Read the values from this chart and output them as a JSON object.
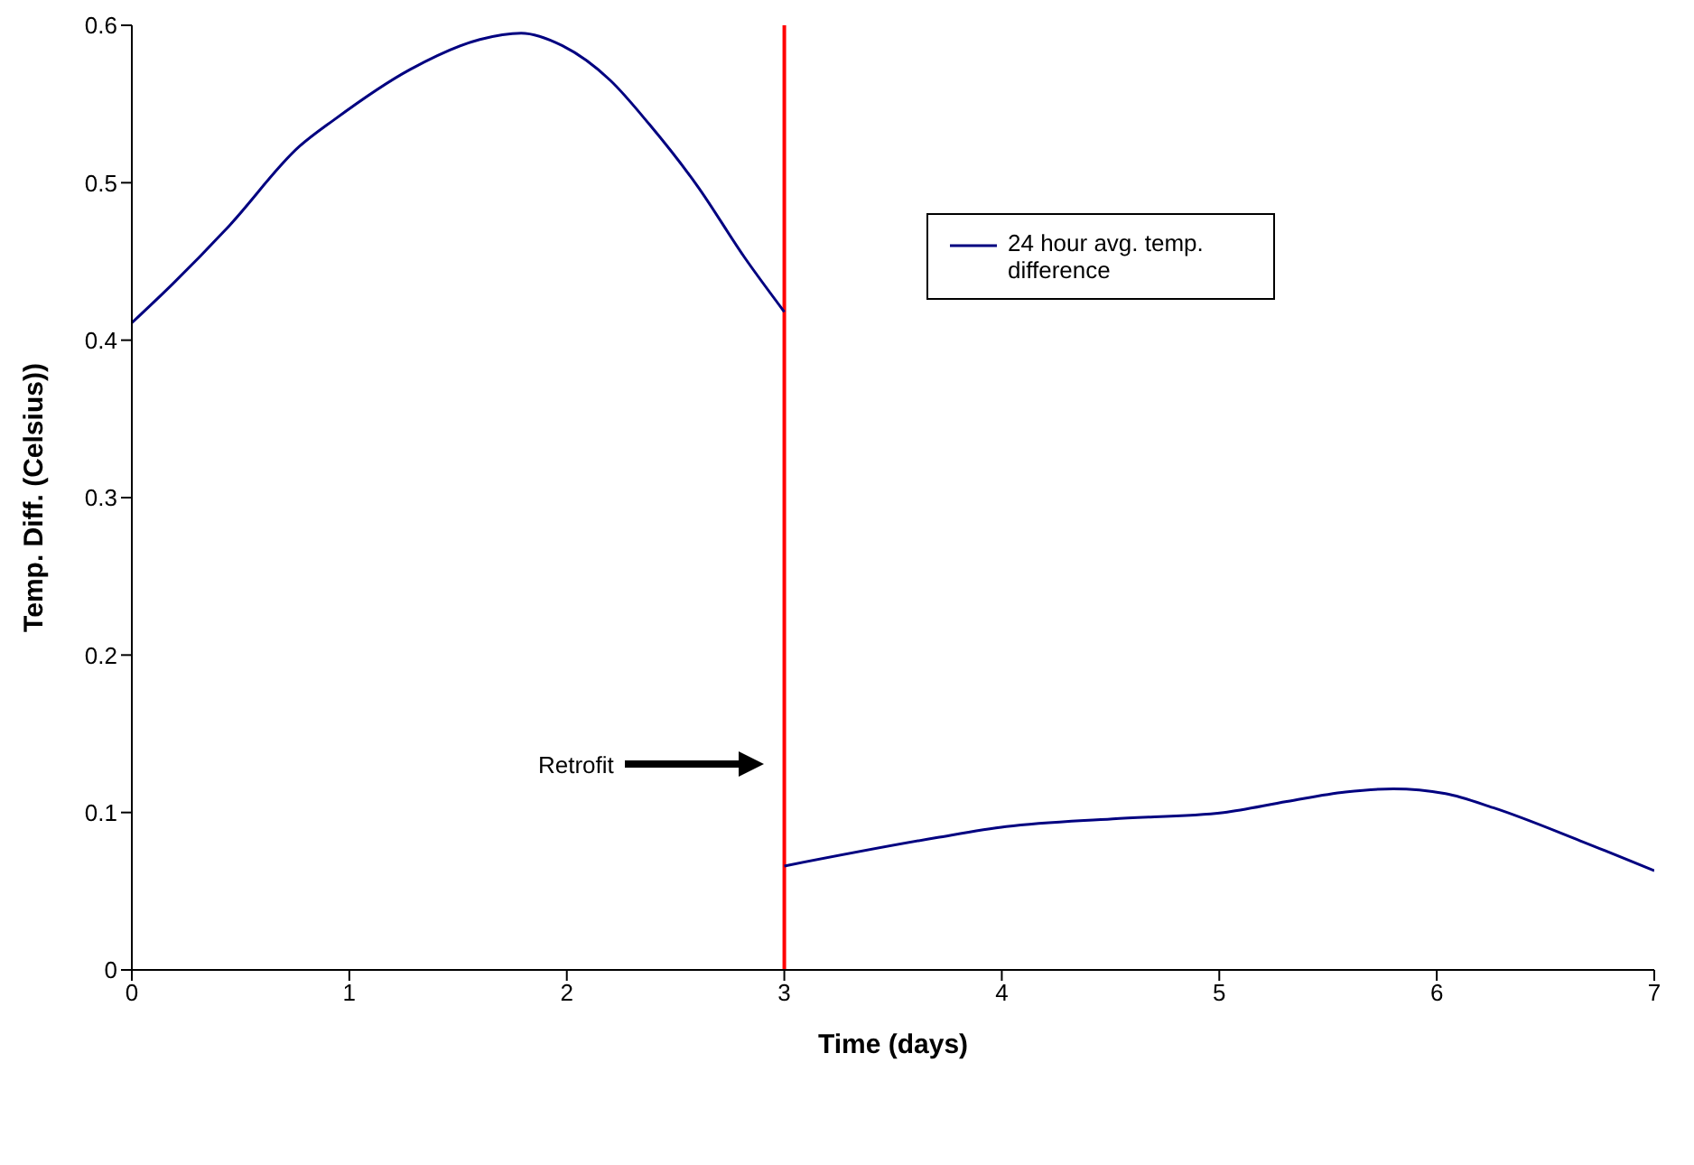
{
  "chart_data": {
    "type": "line",
    "xlabel": "Time (days)",
    "ylabel": "Temp. Diff.  (Celsius))",
    "xlim": [
      0,
      7
    ],
    "xticks": [
      0,
      1,
      2,
      3,
      4,
      5,
      6,
      7
    ],
    "ylim": [
      0,
      0.6
    ],
    "yticks": [
      0,
      0.1,
      0.2,
      0.3,
      0.4,
      0.5,
      0.6
    ],
    "grid": false,
    "legend": "top right",
    "marker": "none",
    "line_style": "solid",
    "series": [
      {
        "name": "24 hour avg. temp. difference",
        "color": "#000080",
        "x": [
          0,
          0.19,
          0.45,
          0.77,
          0.93,
          1.28,
          1.6,
          1.79,
          1.98,
          2.2,
          2.38,
          2.6,
          2.82,
          3
        ],
        "values": [
          0.411,
          0.436,
          0.473,
          0.523,
          0.54,
          0.572,
          0.591,
          0.595,
          0.587,
          0.565,
          0.537,
          0.498,
          0.452,
          0.418
        ]
      },
      {
        "color": "#000080",
        "x": [
          3,
          3.7,
          4.02,
          4.51,
          5.02,
          5.31,
          5.58,
          5.8,
          6.04,
          6.26,
          6.66,
          7
        ],
        "values": [
          0.066,
          0.084,
          0.091,
          0.096,
          0.1,
          0.107,
          0.113,
          0.115,
          0.112,
          0.103,
          0.082,
          0.063
        ]
      }
    ],
    "ref_lines": [
      {
        "axis": "x",
        "value": 3,
        "color": "#ff0000"
      }
    ],
    "annotations": [
      "Retrofit"
    ]
  }
}
